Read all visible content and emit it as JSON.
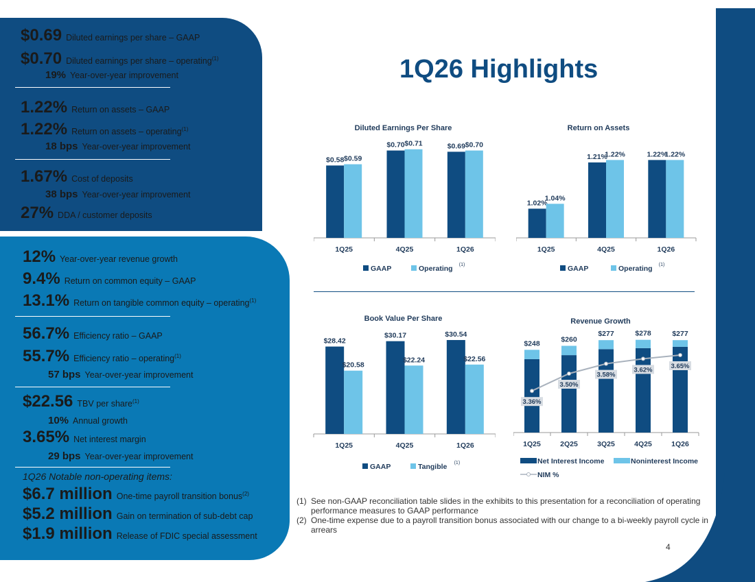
{
  "title": "1Q26 Highlights",
  "page_number": "4",
  "top_panel": [
    {
      "value": "$0.69",
      "desc": "Diluted earnings per share – GAAP",
      "sup": ""
    },
    {
      "value": "$0.70",
      "desc": "Diluted earnings per share – operating",
      "sup": "(1)"
    },
    {
      "value": "19%",
      "desc": "Year-over-year improvement",
      "sup": ""
    },
    {
      "value": "1.22%",
      "desc": "Return on assets – GAAP",
      "sup": ""
    },
    {
      "value": "1.22%",
      "desc": "Return on assets – operating",
      "sup": "(1)"
    },
    {
      "value": "18 bps",
      "desc": "Year-over-year improvement",
      "sup": ""
    },
    {
      "value": "1.67%",
      "desc": "Cost of deposits",
      "sup": ""
    },
    {
      "value": "38 bps",
      "desc": "Year-over-year improvement",
      "sup": ""
    },
    {
      "value": "27%",
      "desc": "DDA / customer deposits",
      "sup": ""
    }
  ],
  "bottom_panel": [
    {
      "value": "12%",
      "desc": "Year-over-year revenue growth",
      "sup": ""
    },
    {
      "value": "9.4%",
      "desc": "Return on common equity – GAAP",
      "sup": ""
    },
    {
      "value": "13.1%",
      "desc": "Return on tangible common equity – operating",
      "sup": "(1)"
    },
    {
      "value": "56.7%",
      "desc": "Efficiency ratio – GAAP",
      "sup": ""
    },
    {
      "value": "55.7%",
      "desc": "Efficiency ratio – operating",
      "sup": "(1)"
    },
    {
      "value": "57 bps",
      "desc": "Year-over-year improvement",
      "sup": ""
    },
    {
      "value": "$22.56",
      "desc": "TBV per share",
      "sup": "(1)"
    },
    {
      "value": "10%",
      "desc": "Annual growth",
      "sup": ""
    },
    {
      "value": "3.65%",
      "desc": "Net interest margin",
      "sup": ""
    },
    {
      "value": "29 bps",
      "desc": "Year-over-year improvement",
      "sup": ""
    },
    {
      "value": "$6.7 million",
      "desc": "One-time payroll transition bonus",
      "sup": "(2)"
    },
    {
      "value": "$5.2 million",
      "desc": "Gain on termination of sub-debt cap",
      "sup": ""
    },
    {
      "value": "$1.9 million",
      "desc": "Release of FDIC special assessment",
      "sup": ""
    }
  ],
  "notable_heading": "1Q26 Notable non-operating items:",
  "colors": {
    "dark_blue": "#0f4c81",
    "light_blue": "#6ec4e8",
    "mid_blue": "#0a79b5",
    "nim_line": "#a9b2bd"
  },
  "chart_data": [
    {
      "type": "bar",
      "title": "Diluted Earnings Per Share",
      "categories": [
        "1Q25",
        "4Q25",
        "1Q26"
      ],
      "series": [
        {
          "name": "GAAP",
          "values": [
            0.58,
            0.7,
            0.69
          ],
          "labels": [
            "$0.58",
            "$0.70",
            "$0.69"
          ]
        },
        {
          "name": "Operating",
          "name_sup": "(1)",
          "values": [
            0.59,
            0.71,
            0.7
          ],
          "labels": [
            "$0.59",
            "$0.71",
            "$0.70"
          ]
        }
      ],
      "ylim": [
        0,
        0.78
      ],
      "legend": "bottom"
    },
    {
      "type": "bar",
      "title": "Return on Assets",
      "categories": [
        "1Q25",
        "4Q25",
        "1Q26"
      ],
      "series": [
        {
          "name": "GAAP",
          "values": [
            1.02,
            1.21,
            1.22
          ],
          "labels": [
            "1.02%",
            "1.21%",
            "1.22%"
          ]
        },
        {
          "name": "Operating",
          "name_sup": "(1)",
          "values": [
            1.04,
            1.22,
            1.22
          ],
          "labels": [
            "1.04%",
            "1.22%",
            "1.22%"
          ]
        }
      ],
      "ylim": [
        0.9,
        1.3
      ],
      "legend": "bottom"
    },
    {
      "type": "bar",
      "title": "Book Value Per Share",
      "categories": [
        "1Q25",
        "4Q25",
        "1Q26"
      ],
      "series": [
        {
          "name": "GAAP",
          "values": [
            28.42,
            30.17,
            30.54
          ],
          "labels": [
            "$28.42",
            "$30.17",
            "$30.54"
          ]
        },
        {
          "name": "Tangible",
          "name_sup": "(1)",
          "values": [
            20.58,
            22.24,
            22.56
          ],
          "labels": [
            "$20.58",
            "$22.24",
            "$22.56"
          ]
        }
      ],
      "ylim": [
        0,
        33
      ],
      "legend": "bottom"
    },
    {
      "type": "bar",
      "title": "Revenue Growth",
      "categories": [
        "1Q25",
        "2Q25",
        "3Q25",
        "4Q25",
        "1Q26"
      ],
      "series": [
        {
          "name": "Net Interest Income",
          "values": [
            220,
            232,
            250,
            253,
            257
          ]
        },
        {
          "name": "Noninterest Income",
          "values": [
            28,
            28,
            27,
            25,
            20
          ]
        },
        {
          "name": "NIM %",
          "values": [
            3.36,
            3.5,
            3.58,
            3.62,
            3.65
          ],
          "labels": [
            "3.36%",
            "3.50%",
            "3.58%",
            "3.62%",
            "3.65%"
          ]
        }
      ],
      "totals": [
        "$248",
        "$260",
        "$277",
        "$278",
        "$277"
      ],
      "total_values": [
        248,
        260,
        277,
        278,
        277
      ],
      "ylim": [
        0,
        300
      ],
      "nim_range": [
        3.25,
        3.75
      ],
      "stacked": true,
      "legend": "bottom"
    }
  ],
  "footnotes": [
    {
      "num": "(1)",
      "text": "See non-GAAP reconciliation table slides in the exhibits to this presentation for a reconciliation of operating performance measures to GAAP performance"
    },
    {
      "num": "(2)",
      "text": "One-time expense due to a payroll transition bonus associated with our change to a bi-weekly payroll cycle in arrears"
    }
  ]
}
